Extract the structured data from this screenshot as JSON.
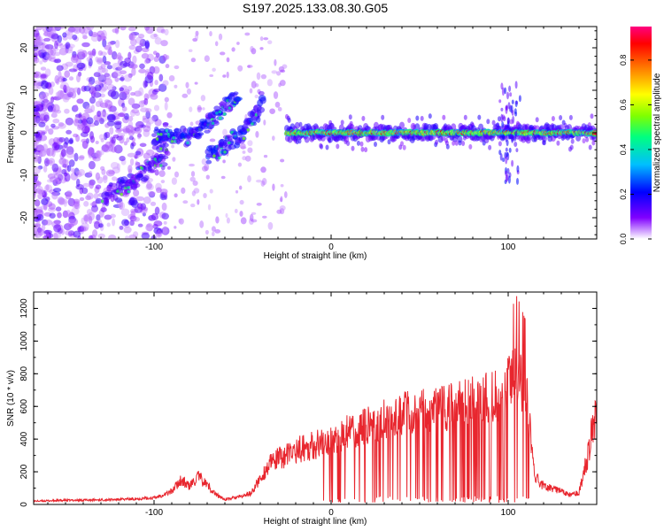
{
  "title": "S197.2025.133.08.30.G05",
  "colors": {
    "snr_line": "#e8262e",
    "spectrogram_low": "#e6dcf7",
    "spectrogram_mid": "#7a1ff0",
    "colorbar": [
      "#ffffff",
      "#8000ff",
      "#0000ff",
      "#00bfff",
      "#00ff80",
      "#80ff00",
      "#ffff00",
      "#ff8000",
      "#ff0000",
      "#ff0080"
    ]
  },
  "chart_data": [
    {
      "type": "heatmap",
      "xlabel": "Height of straight line (km)",
      "ylabel": "Frequency (Hz)",
      "xlim": [
        -168,
        150
      ],
      "ylim": [
        -25,
        25
      ],
      "xticks": [
        -100,
        0,
        100
      ],
      "yticks": [
        -20,
        -10,
        0,
        10,
        20
      ],
      "colorbar": {
        "label": "Normalized spectral amplitude",
        "range": [
          0,
          0.95
        ],
        "ticks": [
          0.0,
          0.2,
          0.4,
          0.6,
          0.8
        ]
      },
      "ridges": [
        {
          "x": [
            -100,
            -90,
            -80,
            -70,
            -60,
            -52
          ],
          "y": [
            -1,
            -0.5,
            -1,
            2,
            6,
            10
          ],
          "strength": 0.25
        },
        {
          "x": [
            -128,
            -115,
            -105,
            -98,
            -92
          ],
          "y": [
            -15,
            -12,
            -9,
            -6,
            -3
          ],
          "strength": 0.2
        },
        {
          "x": [
            -70,
            -60,
            -50,
            -42,
            -38
          ],
          "y": [
            -6,
            -3,
            0,
            4,
            9
          ],
          "strength": 0.25
        },
        {
          "x": [
            -25,
            0,
            50,
            80,
            100,
            110,
            150
          ],
          "y": [
            0,
            0,
            0,
            0,
            0,
            0,
            0
          ],
          "strength": 0.95
        }
      ]
    },
    {
      "type": "line",
      "xlabel": "Height of straight line (km)",
      "ylabel": "SNR (10 * v/v)",
      "xlim": [
        -168,
        150
      ],
      "ylim": [
        0,
        1300
      ],
      "xticks": [
        -100,
        0,
        100
      ],
      "yticks": [
        0,
        200,
        400,
        600,
        800,
        1000,
        1200
      ],
      "series": [
        {
          "x": [
            -168,
            -150,
            -120,
            -100,
            -90,
            -85,
            -80,
            -75,
            -70,
            -65,
            -60,
            -50,
            -45,
            -40,
            -35,
            -30,
            -25,
            -20,
            -15,
            -10,
            -5,
            0,
            5,
            10,
            15,
            20,
            25,
            30,
            35,
            40,
            45,
            50,
            55,
            60,
            65,
            70,
            75,
            80,
            85,
            90,
            95,
            100,
            105,
            110,
            115,
            120,
            125,
            130,
            135,
            140,
            145,
            150
          ],
          "y": [
            20,
            25,
            30,
            40,
            80,
            150,
            110,
            170,
            120,
            60,
            30,
            50,
            70,
            160,
            240,
            280,
            300,
            330,
            350,
            360,
            380,
            400,
            420,
            450,
            470,
            480,
            500,
            520,
            540,
            550,
            560,
            570,
            570,
            580,
            590,
            600,
            620,
            630,
            640,
            650,
            680,
            720,
            800,
            700,
            180,
            110,
            100,
            80,
            60,
            70,
            300,
            600
          ]
        }
      ]
    }
  ]
}
